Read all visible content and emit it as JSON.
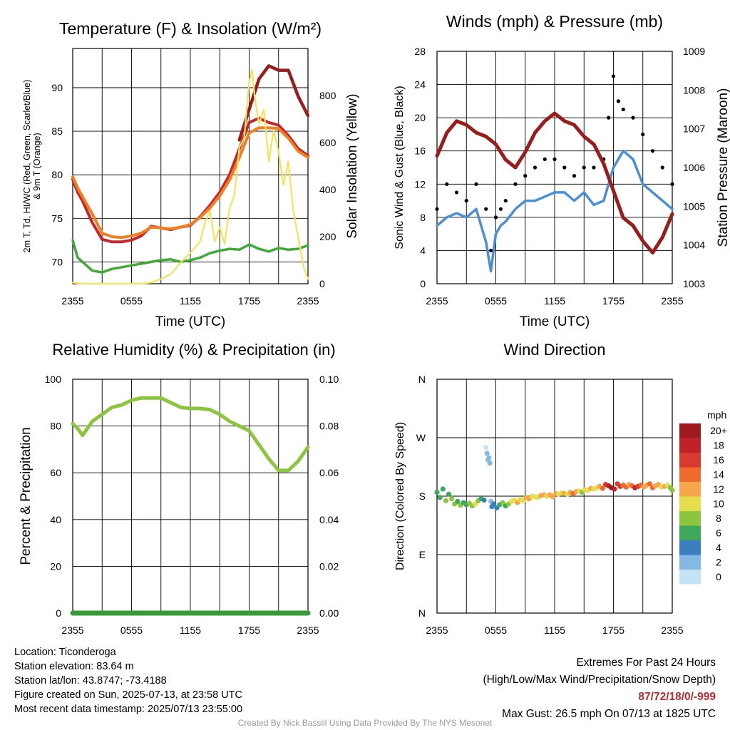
{
  "colors": {
    "red": "#c8262b",
    "green": "#3faa35",
    "orange": "#f08020",
    "yellow": "#f7e25a",
    "maroon": "#9b1c1c",
    "blue": "#4a90d9",
    "black": "#000000",
    "rh": "#8cc63f",
    "precip": "#3a9a3a",
    "highlight": "#c0272d",
    "credit": "#9a9a9a"
  },
  "chart_data": [
    {
      "id": "temp",
      "type": "line",
      "title": "Temperature (F) & Insolation (W/m²)",
      "xlabel": "Time (UTC)",
      "ylabel_lines": [
        "2m T, Td, HI/WC (Red, Green, Scarlet/Blue)",
        "& 9m T (Orange)"
      ],
      "y2label": "Solar Insolation (Yellow)",
      "ylim": [
        67.5,
        94.5
      ],
      "y2lim": [
        0,
        1000
      ],
      "yticks": [
        70,
        75,
        80,
        85,
        90
      ],
      "y2ticks": [
        0,
        200,
        400,
        600,
        800
      ],
      "xticks": [
        "2355",
        "0555",
        "1155",
        "1755",
        "2355"
      ],
      "series": [
        {
          "name": "2m T",
          "color": "red",
          "x": [
            0,
            0.5,
            1,
            2,
            3,
            4,
            5,
            6,
            7,
            8,
            9,
            10,
            11,
            12,
            13,
            14,
            15,
            16,
            17,
            18,
            19,
            20,
            21,
            22,
            23,
            24
          ],
          "y": [
            79.5,
            78,
            77,
            74.5,
            72.6,
            72.3,
            72.3,
            72.5,
            73,
            74.1,
            73.9,
            73.7,
            74,
            74.2,
            75.2,
            76.5,
            78,
            80,
            83,
            86,
            86.5,
            86,
            85.7,
            84.5,
            83,
            82.2
          ]
        },
        {
          "name": "9m T",
          "color": "orange",
          "x": [
            0,
            0.5,
            1,
            2,
            3,
            4,
            5,
            6,
            7,
            8,
            9,
            10,
            11,
            12,
            13,
            14,
            15,
            16,
            17,
            18,
            19,
            20,
            21,
            22,
            23,
            24
          ],
          "y": [
            79.8,
            78.5,
            77.5,
            75.5,
            73.3,
            72.9,
            72.8,
            73,
            73.3,
            74,
            73.9,
            73.8,
            74,
            74.3,
            75.1,
            76.2,
            77.6,
            79.4,
            82,
            84.8,
            85.4,
            85.4,
            85.3,
            84.2,
            82.7,
            82
          ]
        },
        {
          "name": "Td",
          "color": "green",
          "x": [
            0,
            0.5,
            1,
            2,
            3,
            4,
            5,
            6,
            7,
            8,
            9,
            10,
            11,
            12,
            13,
            14,
            15,
            16,
            17,
            18,
            19,
            20,
            21,
            22,
            23,
            24
          ],
          "y": [
            72.5,
            70.5,
            70,
            69,
            68.8,
            69.2,
            69.4,
            69.6,
            69.8,
            70,
            70.2,
            70.3,
            70,
            70.2,
            70.5,
            71,
            71.3,
            71.5,
            71.4,
            72,
            71.5,
            71.2,
            71.6,
            71.4,
            71.5,
            71.9
          ]
        },
        {
          "name": "HI",
          "color": "maroon",
          "x": [
            17,
            18,
            19,
            20,
            21,
            22,
            23,
            24
          ],
          "y": [
            84,
            87.5,
            91,
            92.5,
            92,
            92,
            89,
            86.8
          ]
        },
        {
          "name": "Insolation",
          "color": "yellow",
          "axis": "y2",
          "x": [
            0,
            1,
            2,
            3,
            4,
            5,
            6,
            7,
            8,
            9,
            10,
            11,
            12,
            13,
            13.5,
            14,
            14.5,
            15,
            15.5,
            16,
            16.5,
            17,
            17.5,
            18,
            18.3,
            18.6,
            19,
            19.5,
            20,
            20.5,
            21,
            21.5,
            22,
            22.5,
            23,
            23.5,
            24
          ],
          "y": [
            5,
            0,
            0,
            0,
            0,
            0,
            0,
            0,
            5,
            20,
            40,
            90,
            130,
            180,
            260,
            310,
            180,
            240,
            170,
            320,
            380,
            580,
            620,
            860,
            910,
            780,
            680,
            740,
            520,
            650,
            560,
            420,
            520,
            310,
            200,
            80,
            20
          ]
        }
      ]
    },
    {
      "id": "wind",
      "type": "line",
      "title": "Winds (mph) & Pressure (mb)",
      "xlabel": "Time (UTC)",
      "ylabel": "Sonic Wind & Gust (Blue, Black)",
      "y2label": "Station Pressure (Maroon)",
      "ylim": [
        0,
        28
      ],
      "y2lim": [
        1003,
        1009
      ],
      "yticks": [
        0,
        4,
        8,
        12,
        16,
        20,
        24,
        28
      ],
      "y2ticks": [
        1003,
        1004,
        1005,
        1006,
        1007,
        1008,
        1009
      ],
      "xticks": [
        "2355",
        "0555",
        "1155",
        "1755",
        "2355"
      ],
      "series": [
        {
          "name": "Wind",
          "color": "blue",
          "x": [
            0,
            1,
            2,
            3,
            4,
            5,
            5.5,
            6,
            6.5,
            7,
            8,
            9,
            10,
            11,
            12,
            13,
            14,
            15,
            16,
            17,
            18,
            19,
            20,
            21,
            22,
            23,
            24
          ],
          "y": [
            7,
            8,
            8.5,
            8,
            9,
            5,
            1.5,
            6,
            7,
            7.5,
            9,
            10,
            10,
            10.5,
            11,
            11,
            10,
            11,
            9.5,
            10,
            14,
            16,
            15,
            12,
            11,
            10,
            9
          ]
        },
        {
          "name": "Gust",
          "color": "black",
          "x": [
            0,
            1,
            2,
            3,
            4,
            5,
            5.5,
            6,
            6.5,
            7,
            8,
            9,
            10,
            11,
            12,
            13,
            14,
            15,
            16,
            17,
            17.5,
            18,
            18.5,
            19,
            20,
            21,
            22,
            23,
            24
          ],
          "y": [
            9,
            12,
            11,
            10,
            12,
            9,
            4,
            8,
            9,
            10,
            12,
            13,
            14,
            15,
            15,
            14,
            13,
            14,
            14,
            15,
            20,
            25,
            22,
            21,
            20,
            18,
            16,
            14,
            12
          ]
        },
        {
          "name": "Pressure",
          "color": "maroon",
          "axis": "y2",
          "x": [
            0,
            1,
            2,
            3,
            4,
            5,
            6,
            7,
            8,
            9,
            10,
            11,
            12,
            13,
            14,
            15,
            16,
            17,
            18,
            19,
            20,
            21,
            22,
            23,
            24
          ],
          "y": [
            1006.3,
            1006.9,
            1007.2,
            1007.1,
            1006.9,
            1006.8,
            1006.6,
            1006.2,
            1006,
            1006.4,
            1006.9,
            1007.2,
            1007.4,
            1007.2,
            1007.1,
            1006.8,
            1006.6,
            1006.1,
            1005.4,
            1004.7,
            1004.5,
            1004.1,
            1003.8,
            1004.2,
            1004.8
          ]
        }
      ]
    },
    {
      "id": "rh",
      "type": "line",
      "title": "Relative Humidity (%) & Precipitation (in)",
      "ylabel": "Percent & Precipitation",
      "ylim": [
        0,
        100
      ],
      "y2lim": [
        0,
        0.1
      ],
      "yticks": [
        0,
        20,
        40,
        60,
        80,
        100
      ],
      "y2ticks": [
        "0.00",
        "0.02",
        "0.04",
        "0.06",
        "0.08",
        "0.10"
      ],
      "xticks": [
        "2355",
        "0555",
        "1155",
        "1755",
        "2355"
      ],
      "series": [
        {
          "name": "RH",
          "color": "rh",
          "x": [
            0,
            0.5,
            1,
            2,
            3,
            4,
            5,
            6,
            7,
            8,
            9,
            10,
            11,
            12,
            13,
            14,
            15,
            16,
            17,
            18,
            19,
            20,
            21,
            22,
            23,
            24
          ],
          "y": [
            81,
            79,
            76,
            82,
            85,
            88,
            89,
            91,
            92,
            92,
            92,
            90,
            88,
            87.5,
            87.5,
            87,
            85,
            82,
            80,
            78,
            72,
            66,
            61,
            61,
            65,
            71
          ]
        },
        {
          "name": "Precipitation",
          "color": "precip",
          "x": [
            0,
            24
          ],
          "y": [
            0,
            0
          ]
        }
      ]
    },
    {
      "id": "dir",
      "type": "scatter",
      "title": "Wind Direction",
      "ylabel": "Direction (Colored By Speed)",
      "yticks": [
        "N",
        "E",
        "S",
        "W",
        "N"
      ],
      "xticks": [
        "2355",
        "0555",
        "1155",
        "1755",
        "2355"
      ],
      "colorbar": {
        "unit": "mph",
        "labels": [
          "20+",
          "18",
          "16",
          "14",
          "12",
          "10",
          "8",
          "6",
          "4",
          "2",
          "0"
        ],
        "colors": [
          "#9e1a1e",
          "#c12128",
          "#d93a30",
          "#ef6a2b",
          "#f7a64a",
          "#e5dc4e",
          "#8cc63f",
          "#3ea85a",
          "#3b7fc0",
          "#84b9e6",
          "#c4e3f7"
        ]
      },
      "x": [
        0,
        0.3,
        0.6,
        0.9,
        1.2,
        1.5,
        1.8,
        2.1,
        2.4,
        2.7,
        3,
        3.3,
        3.6,
        3.9,
        4.2,
        4.5,
        4.8,
        5,
        5.1,
        5.2,
        5.3,
        5.4,
        5.5,
        5.6,
        5.8,
        6.1,
        6.4,
        6.7,
        7,
        7.3,
        7.6,
        7.9,
        8.2,
        8.5,
        8.8,
        9.1,
        9.4,
        9.7,
        10,
        10.3,
        10.6,
        10.9,
        11.2,
        11.5,
        11.8,
        12.1,
        12.4,
        12.7,
        13,
        13.3,
        13.6,
        13.9,
        14.2,
        14.5,
        14.8,
        15.1,
        15.4,
        15.7,
        16,
        16.3,
        16.6,
        16.9,
        17.2,
        17.5,
        17.8,
        18.1,
        18.4,
        18.7,
        19,
        19.3,
        19.6,
        19.9,
        20.2,
        20.5,
        20.8,
        21.1,
        21.4,
        21.7,
        22,
        22.3,
        22.6,
        22.9,
        23.2,
        23.5,
        23.8,
        24
      ],
      "y": [
        186,
        178,
        191,
        173,
        183,
        176,
        168,
        172,
        166,
        170,
        167,
        169,
        165,
        168,
        173,
        176,
        174,
        255,
        246,
        236,
        239,
        231,
        172,
        164,
        168,
        162,
        167,
        170,
        165,
        168,
        172,
        174,
        170,
        175,
        173,
        178,
        176,
        180,
        179,
        178,
        181,
        182,
        180,
        182,
        179,
        184,
        183,
        185,
        184,
        183,
        186,
        184,
        187,
        188,
        186,
        190,
        189,
        192,
        191,
        193,
        195,
        192,
        198,
        196,
        193,
        191,
        199,
        195,
        197,
        194,
        198,
        196,
        193,
        195,
        197,
        194,
        197,
        199,
        193,
        196,
        198,
        194,
        195,
        197,
        193,
        189
      ],
      "speed": [
        6,
        7,
        7,
        8,
        6,
        9,
        8,
        7,
        8,
        6,
        7,
        8,
        9,
        10,
        8,
        6,
        5,
        1,
        2,
        3,
        2,
        3,
        3,
        4,
        5,
        5,
        6,
        8,
        7,
        9,
        10,
        11,
        12,
        10,
        11,
        13,
        12,
        11,
        10,
        11,
        12,
        13,
        11,
        12,
        13,
        12,
        11,
        10,
        12,
        11,
        13,
        14,
        12,
        11,
        9,
        10,
        11,
        12,
        11,
        10,
        13,
        14,
        17,
        19,
        20,
        18,
        17,
        16,
        15,
        14,
        13,
        15,
        18,
        16,
        14,
        13,
        12,
        15,
        14,
        13,
        12,
        11,
        12,
        10,
        9,
        8
      ]
    }
  ],
  "info": {
    "location": "Location: Ticonderoga",
    "elevation": "Station elevation: 83.64 m",
    "latlon": "Station lat/lon: 43.8747; -73.4188",
    "created": "Figure created on Sun, 2025-07-13, at 23:58 UTC",
    "recent": "Most recent data timestamp: 2025/07/13 23:55:00"
  },
  "extremes": {
    "title": "Extremes For Past 24 Hours",
    "legend": "(High/Low/Max Wind/Precipitation/Snow Depth)",
    "values": "87/72/18/0/-999",
    "gust": "Max Gust: 26.5 mph On 07/13 at 1825 UTC"
  },
  "credit": "Created By Nick Bassill Using Data Provided By The NYS Mesonet"
}
